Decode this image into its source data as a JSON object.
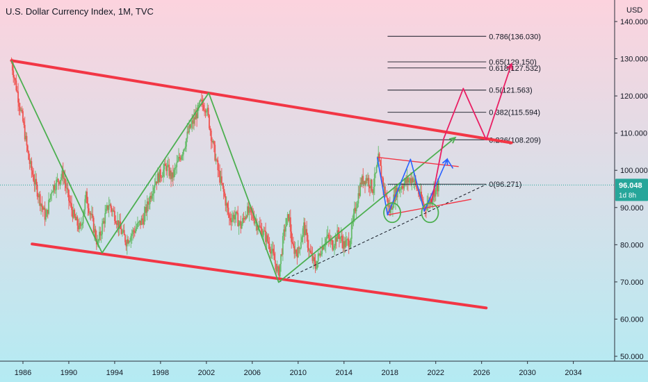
{
  "chart_data": {
    "type": "line",
    "title": "U.S. Dollar Currency Index, 1M, TVC",
    "currency": "USD",
    "x_ticks": [
      "1986",
      "1990",
      "1994",
      "1998",
      "2002",
      "2006",
      "2010",
      "2014",
      "2018",
      "2022",
      "2026",
      "2030",
      "2034"
    ],
    "y_ticks": [
      "140.000",
      "130.000",
      "120.000",
      "110.000",
      "100.000",
      "90.000",
      "80.000",
      "70.000",
      "60.000",
      "50.000"
    ],
    "xlim": [
      1984,
      2037.6
    ],
    "ylim": [
      48,
      142
    ],
    "last_price": {
      "value": 96.048,
      "label": "96.048",
      "countdown": "1d 8h"
    },
    "fib_levels": [
      {
        "ratio": 0.786,
        "value": 136.03,
        "label": "0.786(136.030)"
      },
      {
        "ratio": 0.65,
        "value": 129.15,
        "label": "0.65(129.150)"
      },
      {
        "ratio": 0.618,
        "value": 127.532,
        "label": "0.618(127.532)"
      },
      {
        "ratio": 0.5,
        "value": 121.563,
        "label": "0.5(121.563)"
      },
      {
        "ratio": 0.382,
        "value": 115.594,
        "label": "0.382(115.594)"
      },
      {
        "ratio": 0.236,
        "value": 108.209,
        "label": "0.236(108.209)"
      },
      {
        "ratio": 0,
        "value": 96.271,
        "label": "0(96.271)"
      }
    ],
    "fib_x_range": [
      2017.8,
      2026.4
    ],
    "price_series": [
      [
        1985.0,
        129
      ],
      [
        1985.5,
        121
      ],
      [
        1986.0,
        113
      ],
      [
        1986.5,
        103
      ],
      [
        1987.0,
        97
      ],
      [
        1987.5,
        92
      ],
      [
        1988.0,
        87
      ],
      [
        1988.5,
        95
      ],
      [
        1989.0,
        97
      ],
      [
        1989.5,
        99
      ],
      [
        1990.0,
        92
      ],
      [
        1990.5,
        87
      ],
      [
        1991.0,
        84
      ],
      [
        1991.5,
        93
      ],
      [
        1992.0,
        87
      ],
      [
        1992.5,
        80
      ],
      [
        1993.0,
        86
      ],
      [
        1993.5,
        91
      ],
      [
        1994.0,
        88
      ],
      [
        1994.5,
        84
      ],
      [
        1995.0,
        81
      ],
      [
        1995.5,
        83
      ],
      [
        1996.0,
        85
      ],
      [
        1996.5,
        87
      ],
      [
        1997.0,
        92
      ],
      [
        1997.5,
        97
      ],
      [
        1998.0,
        99
      ],
      [
        1998.5,
        101
      ],
      [
        1999.0,
        98
      ],
      [
        1999.5,
        102
      ],
      [
        2000.0,
        106
      ],
      [
        2000.5,
        111
      ],
      [
        2001.0,
        114
      ],
      [
        2001.5,
        118
      ],
      [
        2002.0,
        117
      ],
      [
        2002.5,
        108
      ],
      [
        2003.0,
        100
      ],
      [
        2003.5,
        94
      ],
      [
        2004.0,
        87
      ],
      [
        2004.5,
        88
      ],
      [
        2005.0,
        85
      ],
      [
        2005.5,
        89
      ],
      [
        2006.0,
        88
      ],
      [
        2006.5,
        85
      ],
      [
        2007.0,
        83
      ],
      [
        2007.5,
        80
      ],
      [
        2008.0,
        75
      ],
      [
        2008.3,
        72
      ],
      [
        2008.8,
        84
      ],
      [
        2009.2,
        88
      ],
      [
        2009.5,
        79
      ],
      [
        2010.0,
        78
      ],
      [
        2010.5,
        85
      ],
      [
        2011.0,
        78
      ],
      [
        2011.5,
        74
      ],
      [
        2012.0,
        79
      ],
      [
        2012.5,
        82
      ],
      [
        2013.0,
        80
      ],
      [
        2013.5,
        83
      ],
      [
        2014.0,
        80
      ],
      [
        2014.5,
        81
      ],
      [
        2015.0,
        90
      ],
      [
        2015.5,
        97
      ],
      [
        2016.0,
        98
      ],
      [
        2016.5,
        95
      ],
      [
        2016.9,
        101
      ],
      [
        2017.0,
        103
      ],
      [
        2017.5,
        95
      ],
      [
        2018.0,
        89
      ],
      [
        2018.5,
        94
      ],
      [
        2019.0,
        96
      ],
      [
        2019.5,
        97
      ],
      [
        2020.0,
        98
      ],
      [
        2020.5,
        94
      ],
      [
        2021.0,
        90
      ],
      [
        2021.5,
        92
      ],
      [
        2022.0,
        95
      ],
      [
        2022.3,
        96.05
      ]
    ],
    "channel_lines": [
      {
        "role": "upper",
        "color": "#f23645",
        "points": [
          [
            1985.0,
            129.5
          ],
          [
            2028.6,
            107.4
          ]
        ]
      },
      {
        "role": "lower",
        "color": "#f23645",
        "points": [
          [
            1986.8,
            80.2
          ],
          [
            2026.4,
            63.0
          ]
        ]
      }
    ],
    "zigzag": {
      "color": "#4caf50",
      "points": [
        [
          1985.0,
          129.5
        ],
        [
          1992.9,
          77.8
        ],
        [
          2002.2,
          120.8
        ],
        [
          2008.3,
          69.9
        ],
        [
          2023.7,
          108.8
        ]
      ]
    },
    "trend_line_dashed": {
      "color": "#131722",
      "points": [
        [
          2008.3,
          69.9
        ],
        [
          2026.4,
          96.2
        ]
      ]
    },
    "triangle": {
      "color": "#f23645",
      "upper": [
        [
          2016.9,
          103.5
        ],
        [
          2024.0,
          101.0
        ]
      ],
      "lower": [
        [
          2017.8,
          88.0
        ],
        [
          2025.1,
          92.2
        ]
      ]
    },
    "blue_path": {
      "color": "#2962ff",
      "points": [
        [
          2016.9,
          103.5
        ],
        [
          2017.8,
          88.0
        ],
        [
          2019.8,
          103.0
        ],
        [
          2021.0,
          89.0
        ],
        [
          2023.0,
          103.0
        ],
        [
          2023.5,
          100.5
        ]
      ]
    },
    "projection": {
      "color": "#e91e63",
      "points": [
        [
          2021.6,
          91.0
        ],
        [
          2022.7,
          108.6
        ],
        [
          2024.4,
          122.0
        ],
        [
          2026.4,
          108.2
        ],
        [
          2028.6,
          128.6
        ]
      ]
    },
    "circles": [
      {
        "x": 2018.2,
        "y": 88.6
      },
      {
        "x": 2021.5,
        "y": 88.6
      }
    ],
    "colors": {
      "background_top": "#fcd3de",
      "background_bottom": "#b2ebf2",
      "up_candle": "#66bb6a",
      "down_candle": "#ef5350",
      "channel": "#f23645",
      "zigzag": "#4caf50",
      "price_tag": "#26a69a"
    }
  }
}
